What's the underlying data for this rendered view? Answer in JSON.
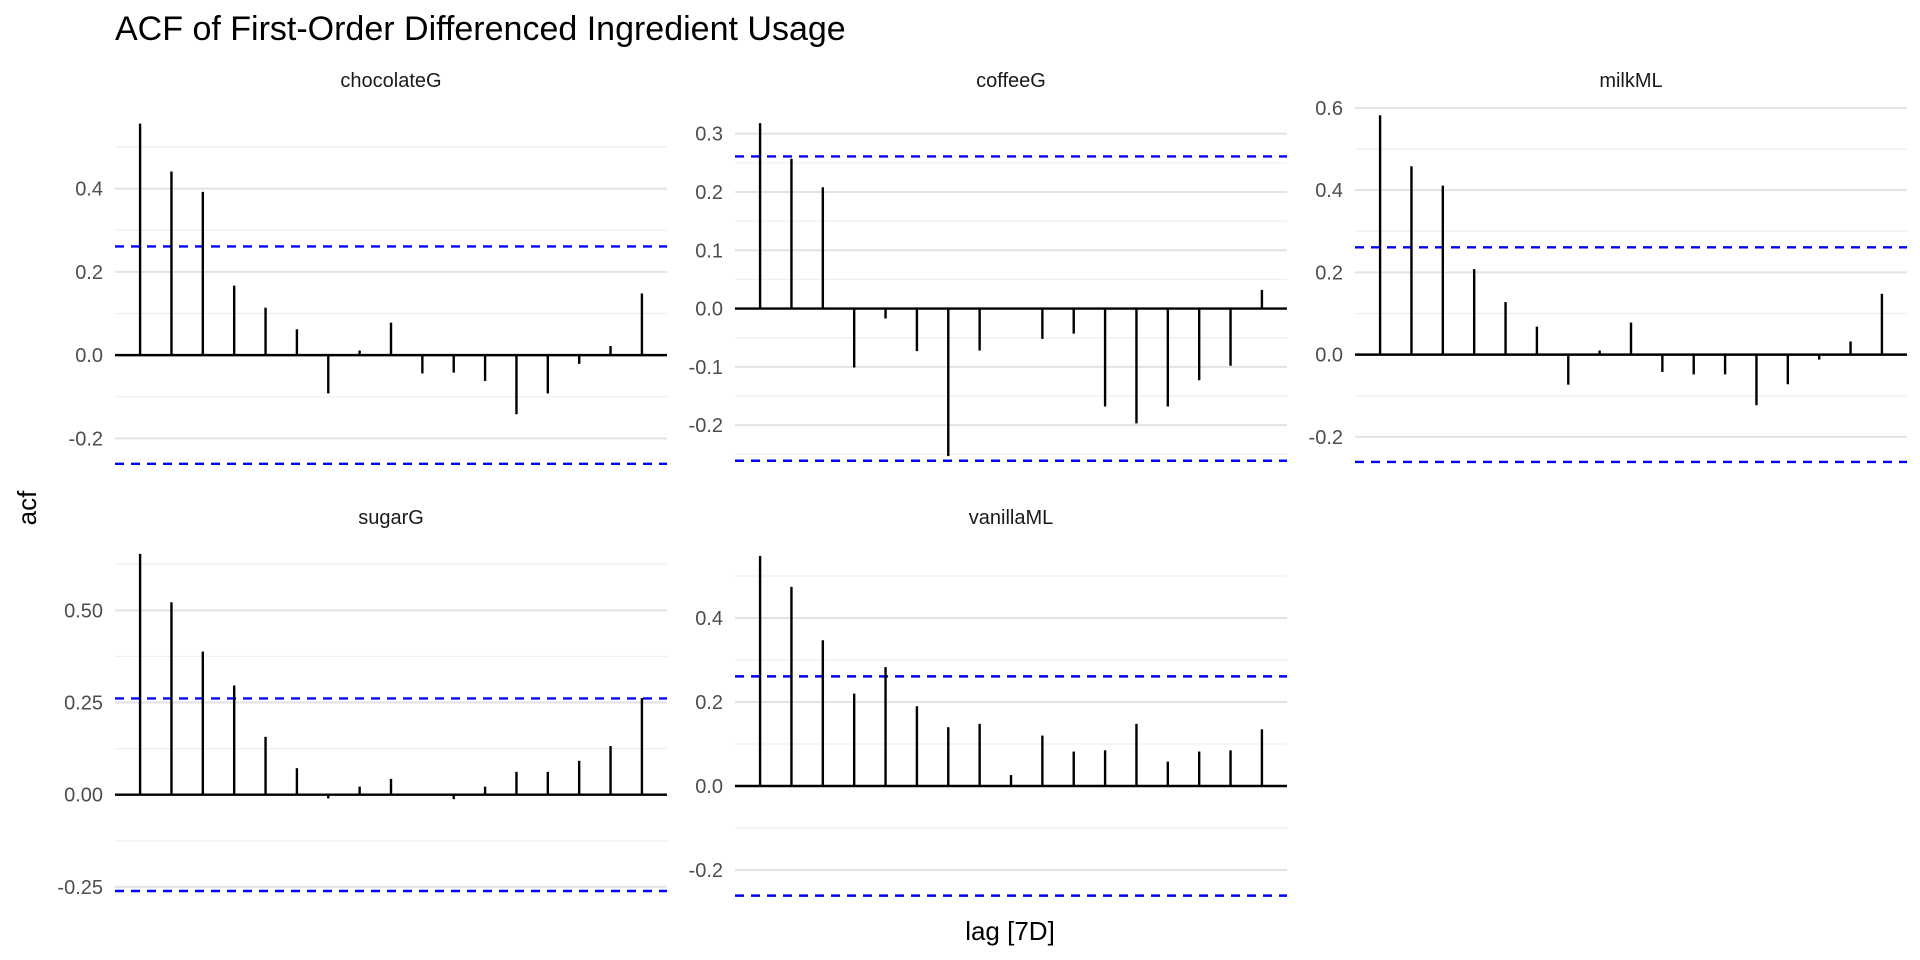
{
  "chart_data": {
    "type": "bar",
    "title": "ACF of First-Order Differenced Ingredient Usage",
    "xlabel": "lag [7D]",
    "ylabel": "acf",
    "ci": 0.261,
    "lags": [
      1,
      2,
      3,
      4,
      5,
      6,
      7,
      8,
      9,
      10,
      11,
      12,
      13,
      14,
      15,
      16,
      17
    ],
    "facets": [
      {
        "name": "chocolateG",
        "ylim": [
          -0.3,
          0.56
        ],
        "yticks": [
          -0.2,
          0.0,
          0.2,
          0.4
        ],
        "ytick_labels": [
          "-0.2",
          "0.0",
          "0.2",
          "0.4"
        ],
        "values": [
          0.556,
          0.441,
          0.392,
          0.167,
          0.114,
          0.062,
          -0.092,
          0.011,
          0.078,
          -0.044,
          -0.042,
          -0.062,
          -0.142,
          -0.092,
          -0.021,
          0.022,
          0.148
        ]
      },
      {
        "name": "coffeeG",
        "ylim": [
          -0.27,
          0.32
        ],
        "yticks": [
          -0.2,
          -0.1,
          0.0,
          0.1,
          0.2,
          0.3
        ],
        "ytick_labels": [
          "-0.2",
          "-0.1",
          "0.0",
          "0.1",
          "0.2",
          "0.3"
        ],
        "values": [
          0.318,
          0.257,
          0.208,
          -0.101,
          -0.017,
          -0.073,
          -0.253,
          -0.072,
          0.0,
          -0.052,
          -0.043,
          -0.168,
          -0.197,
          -0.168,
          -0.123,
          -0.098,
          0.032
        ]
      },
      {
        "name": "milkML",
        "ylim": [
          -0.3,
          0.59
        ],
        "yticks": [
          -0.2,
          0.0,
          0.2,
          0.4,
          0.6
        ],
        "ytick_labels": [
          "-0.2",
          "0.0",
          "0.2",
          "0.4",
          "0.6"
        ],
        "values": [
          0.582,
          0.458,
          0.411,
          0.208,
          0.128,
          0.068,
          -0.073,
          0.01,
          0.078,
          -0.042,
          -0.048,
          -0.048,
          -0.123,
          -0.072,
          -0.012,
          0.032,
          0.148
        ]
      },
      {
        "name": "sugarG",
        "ylim": [
          -0.28,
          0.65
        ],
        "yticks": [
          -0.25,
          0.0,
          0.25,
          0.5
        ],
        "ytick_labels": [
          "-0.25",
          "0.00",
          "0.25",
          "0.50"
        ],
        "values": [
          0.653,
          0.522,
          0.388,
          0.296,
          0.157,
          0.072,
          -0.01,
          0.022,
          0.043,
          0.0,
          -0.012,
          0.022,
          0.062,
          0.062,
          0.092,
          0.132,
          0.262
        ]
      },
      {
        "name": "vanillaML",
        "ylim": [
          -0.3,
          0.55
        ],
        "yticks": [
          -0.2,
          0.0,
          0.2,
          0.4
        ],
        "ytick_labels": [
          "-0.2",
          "0.0",
          "0.2",
          "0.4"
        ],
        "values": [
          0.548,
          0.474,
          0.347,
          0.22,
          0.283,
          0.19,
          0.14,
          0.148,
          0.026,
          0.12,
          0.082,
          0.085,
          0.148,
          0.058,
          0.082,
          0.085,
          0.135
        ]
      }
    ]
  }
}
